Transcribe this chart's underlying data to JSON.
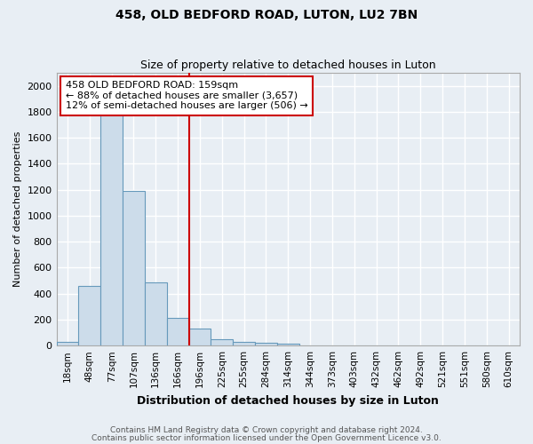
{
  "title1": "458, OLD BEDFORD ROAD, LUTON, LU2 7BN",
  "title2": "Size of property relative to detached houses in Luton",
  "xlabel": "Distribution of detached houses by size in Luton",
  "ylabel": "Number of detached properties",
  "categories": [
    "18sqm",
    "48sqm",
    "77sqm",
    "107sqm",
    "136sqm",
    "166sqm",
    "196sqm",
    "225sqm",
    "255sqm",
    "284sqm",
    "314sqm",
    "344sqm",
    "373sqm",
    "403sqm",
    "432sqm",
    "462sqm",
    "492sqm",
    "521sqm",
    "551sqm",
    "580sqm",
    "610sqm"
  ],
  "values": [
    28,
    460,
    2000,
    1190,
    490,
    210,
    130,
    50,
    28,
    20,
    12,
    0,
    0,
    0,
    0,
    0,
    0,
    0,
    0,
    0,
    0
  ],
  "bar_color": "#ccdcea",
  "bar_edge_color": "#6699bb",
  "vline_x": 5.5,
  "vline_color": "#cc0000",
  "annotation_text": "458 OLD BEDFORD ROAD: 159sqm\n← 88% of detached houses are smaller (3,657)\n12% of semi-detached houses are larger (506) →",
  "annotation_box_facecolor": "#ffffff",
  "annotation_box_edgecolor": "#cc0000",
  "footer1": "Contains HM Land Registry data © Crown copyright and database right 2024.",
  "footer2": "Contains public sector information licensed under the Open Government Licence v3.0.",
  "ylim": [
    0,
    2100
  ],
  "yticks": [
    0,
    200,
    400,
    600,
    800,
    1000,
    1200,
    1400,
    1600,
    1800,
    2000
  ],
  "plot_bg_color": "#e8eef4",
  "fig_bg_color": "#e8eef4",
  "grid_color": "#ffffff",
  "spine_color": "#aaaaaa",
  "tick_label_fontsize": 7.5,
  "ytick_label_fontsize": 8,
  "ylabel_fontsize": 8,
  "xlabel_fontsize": 9,
  "title1_fontsize": 10,
  "title2_fontsize": 9,
  "footer_fontsize": 6.5,
  "footer_color": "#555555",
  "ann_fontsize": 8
}
